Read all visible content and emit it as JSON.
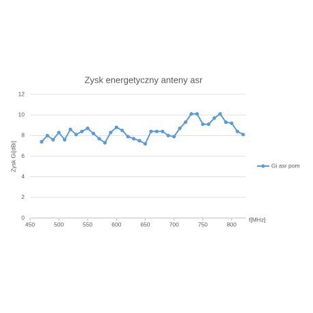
{
  "chart_data": {
    "type": "line",
    "title": "Zysk energetyczny anteny asr",
    "xlabel": "f[MHz]",
    "ylabel": "Zysk Gi[dBi]",
    "x": [
      470,
      480,
      490,
      500,
      510,
      520,
      530,
      540,
      550,
      560,
      570,
      580,
      590,
      600,
      610,
      620,
      630,
      640,
      650,
      660,
      670,
      680,
      690,
      700,
      710,
      720,
      730,
      740,
      750,
      760,
      770,
      780,
      790,
      800,
      810,
      820
    ],
    "series": [
      {
        "name": "Gi asr pom",
        "color": "#5b9bd5",
        "values": [
          7.4,
          8.0,
          7.6,
          8.3,
          7.6,
          8.6,
          8.1,
          8.4,
          8.7,
          8.2,
          7.7,
          7.3,
          8.3,
          8.8,
          8.5,
          7.9,
          7.7,
          7.5,
          7.2,
          8.4,
          8.4,
          8.4,
          8.0,
          7.9,
          8.7,
          9.3,
          10.1,
          10.1,
          9.1,
          9.1,
          9.7,
          10.1,
          9.3,
          9.2,
          8.4,
          8.1
        ]
      }
    ],
    "xlim": [
      450,
      825
    ],
    "xticks": [
      450,
      500,
      550,
      600,
      650,
      700,
      750,
      800
    ],
    "ylim": [
      0,
      12
    ],
    "yticks": [
      0,
      2,
      4,
      6,
      8,
      10,
      12
    ],
    "grid": true,
    "legend": "right"
  }
}
